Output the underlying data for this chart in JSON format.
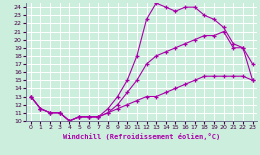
{
  "xlabel": "Windchill (Refroidissement éolien,°C)",
  "bg_color": "#cceedd",
  "grid_color": "#ffffff",
  "line_color": "#aa00aa",
  "xlim": [
    -0.5,
    23.5
  ],
  "ylim": [
    10,
    24.5
  ],
  "xticks": [
    0,
    1,
    2,
    3,
    4,
    5,
    6,
    7,
    8,
    9,
    10,
    11,
    12,
    13,
    14,
    15,
    16,
    17,
    18,
    19,
    20,
    21,
    22,
    23
  ],
  "yticks": [
    10,
    11,
    12,
    13,
    14,
    15,
    16,
    17,
    18,
    19,
    20,
    21,
    22,
    23,
    24
  ],
  "series": [
    {
      "x": [
        0,
        1,
        2,
        3,
        4,
        5,
        6,
        7,
        8,
        9,
        10,
        11,
        12,
        13,
        14,
        15,
        16,
        17,
        18,
        19,
        20,
        21,
        22,
        23
      ],
      "y": [
        13,
        11.5,
        11,
        11,
        10,
        10.5,
        10.5,
        10.5,
        11,
        11.5,
        12,
        12.5,
        13,
        13,
        13.5,
        14,
        14.5,
        15,
        15.5,
        15.5,
        15.5,
        15.5,
        15.5,
        15
      ]
    },
    {
      "x": [
        0,
        1,
        2,
        3,
        4,
        5,
        6,
        7,
        8,
        9,
        10,
        11,
        12,
        13,
        14,
        15,
        16,
        17,
        18,
        19,
        20,
        21,
        22,
        23
      ],
      "y": [
        13,
        11.5,
        11,
        11,
        10,
        10.5,
        10.5,
        10.5,
        11,
        12,
        13.5,
        15,
        17,
        18,
        18.5,
        19,
        19.5,
        20,
        20.5,
        20.5,
        21,
        19,
        19,
        17
      ]
    },
    {
      "x": [
        0,
        1,
        2,
        3,
        4,
        5,
        6,
        7,
        8,
        9,
        10,
        11,
        12,
        13,
        14,
        15,
        16,
        17,
        18,
        19,
        20,
        21,
        22,
        23
      ],
      "y": [
        13,
        11.5,
        11,
        11,
        10,
        10.5,
        10.5,
        10.5,
        11.5,
        13,
        15,
        18,
        22.5,
        24.5,
        24,
        23.5,
        24,
        24,
        23,
        22.5,
        21.5,
        19.5,
        19,
        15
      ]
    }
  ]
}
